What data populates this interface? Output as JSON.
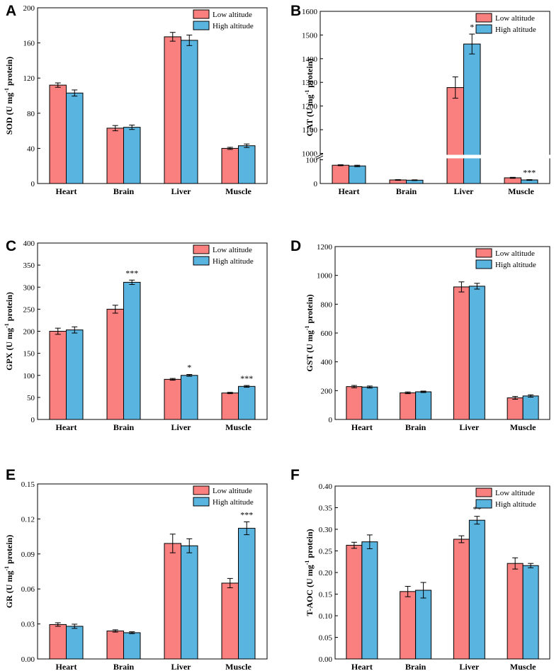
{
  "chart_data": [
    {
      "panel": "A",
      "type": "bar",
      "ylabel": "SOD (U mg-1 protein)",
      "ylim": [
        0,
        200
      ],
      "yticks": [
        "0",
        "40",
        "80",
        "120",
        "160",
        "200"
      ],
      "categories": [
        "Heart",
        "Brain",
        "Liver",
        "Muscle"
      ],
      "series": [
        {
          "name": "Low altitude",
          "color": "#fa7f7f",
          "values": [
            112,
            63,
            167,
            40
          ],
          "errors": [
            2.5,
            3,
            5,
            1.2
          ]
        },
        {
          "name": "High altitude",
          "color": "#5ab4e0",
          "values": [
            103,
            64,
            163,
            43
          ],
          "errors": [
            3.5,
            2.5,
            6,
            2
          ]
        }
      ],
      "significance": [
        "",
        "",
        "",
        ""
      ],
      "legend_position": "top-right"
    },
    {
      "panel": "B",
      "type": "bar",
      "ylabel": "CAT (U mg-1 protein)",
      "ylim": [
        0,
        1600
      ],
      "y_axis_break": [
        100,
        1000
      ],
      "yticks": [
        "0",
        "100",
        "1000",
        "1100",
        "1200",
        "1300",
        "1400",
        "1500",
        "1600"
      ],
      "categories": [
        "Heart",
        "Brain",
        "Liver",
        "Muscle"
      ],
      "series": [
        {
          "name": "Low altitude",
          "color": "#fa7f7f",
          "values": [
            77,
            15,
            1278,
            24
          ],
          "errors": [
            2,
            1.5,
            45,
            2
          ]
        },
        {
          "name": "High altitude",
          "color": "#5ab4e0",
          "values": [
            74,
            14,
            1462,
            15
          ],
          "errors": [
            3,
            1.5,
            42,
            1.5
          ]
        }
      ],
      "significance": [
        "",
        "",
        "*",
        "***"
      ],
      "legend_position": "top-right"
    },
    {
      "panel": "C",
      "type": "bar",
      "ylabel": "GPX (U mg-1 protein)",
      "ylim": [
        0,
        400
      ],
      "yticks": [
        "0",
        "50",
        "100",
        "150",
        "200",
        "250",
        "300",
        "350",
        "400"
      ],
      "categories": [
        "Heart",
        "Brain",
        "Liver",
        "Muscle"
      ],
      "series": [
        {
          "name": "Low altitude",
          "color": "#fa7f7f",
          "values": [
            200,
            250,
            91,
            60
          ],
          "errors": [
            7,
            9,
            2,
            1.5
          ]
        },
        {
          "name": "High altitude",
          "color": "#5ab4e0",
          "values": [
            203,
            311,
            100,
            75
          ],
          "errors": [
            7,
            5,
            2,
            2
          ]
        }
      ],
      "significance": [
        "",
        "***",
        "*",
        "***"
      ],
      "legend_position": "top-right"
    },
    {
      "panel": "D",
      "type": "bar",
      "ylabel": "GST (U mg-1 protein)",
      "ylim": [
        0,
        1200
      ],
      "yticks": [
        "0",
        "200",
        "400",
        "600",
        "800",
        "1000",
        "1200"
      ],
      "categories": [
        "Heart",
        "Brain",
        "Liver",
        "Muscle"
      ],
      "series": [
        {
          "name": "Low altitude",
          "color": "#fa7f7f",
          "values": [
            228,
            185,
            920,
            150
          ],
          "errors": [
            8,
            6,
            35,
            10
          ]
        },
        {
          "name": "High altitude",
          "color": "#5ab4e0",
          "values": [
            225,
            192,
            925,
            163
          ],
          "errors": [
            7,
            5,
            20,
            8
          ]
        }
      ],
      "significance": [
        "",
        "",
        "",
        ""
      ],
      "legend_position": "top-right"
    },
    {
      "panel": "E",
      "type": "bar",
      "ylabel": "GR (U mg-1 protein)",
      "ylim": [
        0,
        0.15
      ],
      "yticks": [
        "0.00",
        "0.03",
        "0.06",
        "0.09",
        "0.12",
        "0.15"
      ],
      "categories": [
        "Heart",
        "Brain",
        "Liver",
        "Muscle"
      ],
      "series": [
        {
          "name": "Low altitude",
          "color": "#fa7f7f",
          "values": [
            0.0295,
            0.024,
            0.099,
            0.065
          ],
          "errors": [
            0.0015,
            0.001,
            0.008,
            0.004
          ]
        },
        {
          "name": "High altitude",
          "color": "#5ab4e0",
          "values": [
            0.028,
            0.0225,
            0.097,
            0.112
          ],
          "errors": [
            0.0018,
            0.0008,
            0.006,
            0.0055
          ]
        }
      ],
      "significance": [
        "",
        "",
        "",
        "***"
      ],
      "legend_position": "top-right"
    },
    {
      "panel": "F",
      "type": "bar",
      "ylabel": "T-AOC (U mg-1 protein)",
      "ylim": [
        0,
        0.4
      ],
      "yticks": [
        "0.00",
        "0.05",
        "0.10",
        "0.15",
        "0.20",
        "0.25",
        "0.30",
        "0.35",
        "0.40"
      ],
      "categories": [
        "Heart",
        "Brain",
        "Liver",
        "Muscle"
      ],
      "series": [
        {
          "name": "Low altitude",
          "color": "#fa7f7f",
          "values": [
            0.263,
            0.156,
            0.277,
            0.221
          ],
          "errors": [
            0.007,
            0.012,
            0.008,
            0.013
          ]
        },
        {
          "name": "High altitude",
          "color": "#5ab4e0",
          "values": [
            0.271,
            0.159,
            0.321,
            0.216
          ],
          "errors": [
            0.016,
            0.018,
            0.009,
            0.005
          ]
        }
      ],
      "significance": [
        "",
        "",
        "**",
        ""
      ],
      "legend_position": "top-right"
    }
  ]
}
